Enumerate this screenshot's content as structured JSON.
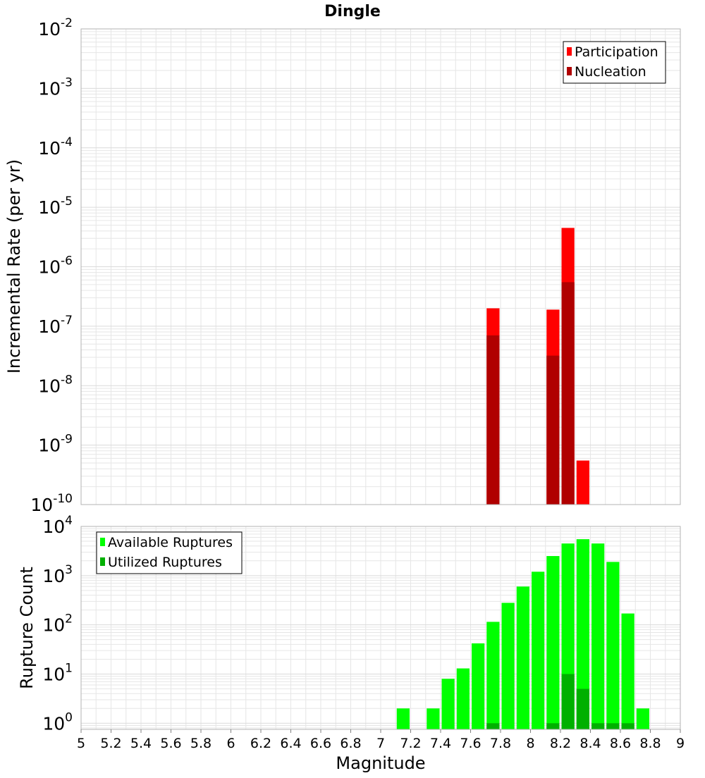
{
  "colors": {
    "participation": "#ff0000",
    "nucleation": "#b00000",
    "available": "#00ff00",
    "utilized": "#00b000",
    "grid": "#e6e6e6",
    "frame": "#b3b3b3"
  },
  "chart_data": [
    {
      "type": "bar",
      "title": "Dingle",
      "xlabel": "",
      "ylabel": "Incremental Rate (per yr)",
      "y_scale": "log",
      "xlim": [
        5,
        9
      ],
      "ylim": [
        1e-10,
        0.01
      ],
      "y_tick_exponents": [
        -10,
        -9,
        -8,
        -7,
        -6,
        -5,
        -4,
        -3,
        -2
      ],
      "grid": true,
      "legend_position": "top-right",
      "series": [
        {
          "name": "Participation",
          "color": "#ff0000",
          "x": [
            7.75,
            8.15,
            8.25,
            8.35
          ],
          "values": [
            2e-07,
            1.9e-07,
            4.5e-06,
            5.5e-10
          ]
        },
        {
          "name": "Nucleation",
          "color": "#b00000",
          "x": [
            7.75,
            8.15,
            8.25
          ],
          "values": [
            7e-08,
            3.2e-08,
            5.5e-07
          ]
        }
      ]
    },
    {
      "type": "bar",
      "title": "",
      "xlabel": "Magnitude",
      "ylabel": "Rupture Count",
      "y_scale": "log",
      "xlim": [
        5,
        9
      ],
      "ylim": [
        0.75,
        10000
      ],
      "y_tick_exponents": [
        0,
        1,
        2,
        3,
        4
      ],
      "x_ticks": [
        "5",
        "5.2",
        "5.4",
        "5.6",
        "5.8",
        "6",
        "6.2",
        "6.4",
        "6.6",
        "6.8",
        "7",
        "7.2",
        "7.4",
        "7.6",
        "7.8",
        "8",
        "8.2",
        "8.4",
        "8.6",
        "8.8",
        "9"
      ],
      "grid": true,
      "legend_position": "top-left",
      "series": [
        {
          "name": "Available Ruptures",
          "color": "#00ff00",
          "x": [
            7.15,
            7.35,
            7.45,
            7.55,
            7.65,
            7.75,
            7.85,
            7.95,
            8.05,
            8.15,
            8.25,
            8.35,
            8.45,
            8.55,
            8.65,
            8.75
          ],
          "values": [
            2,
            2,
            8,
            13,
            42,
            115,
            280,
            600,
            1200,
            2500,
            4500,
            5500,
            4500,
            1900,
            170,
            2
          ]
        },
        {
          "name": "Utilized Ruptures",
          "color": "#00b000",
          "x": [
            7.75,
            8.15,
            8.25,
            8.35,
            8.45,
            8.55,
            8.65
          ],
          "values": [
            1,
            1,
            10,
            5,
            1,
            1,
            1
          ]
        }
      ]
    }
  ]
}
